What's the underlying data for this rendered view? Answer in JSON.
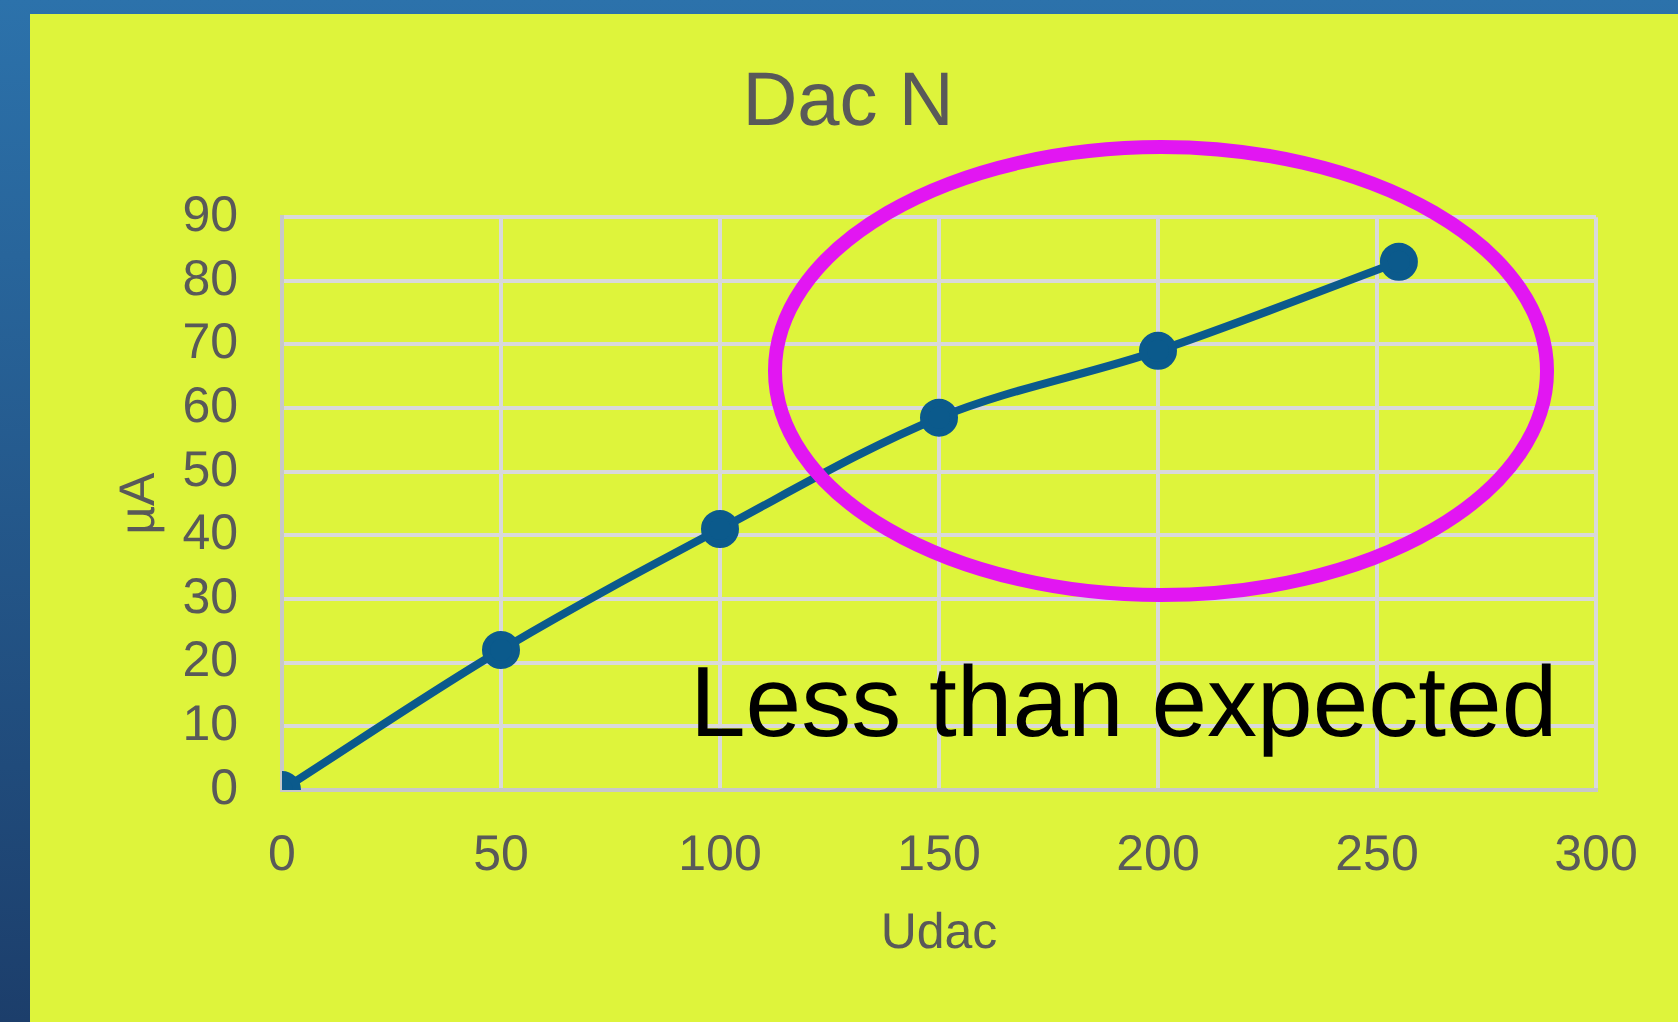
{
  "chart_data": {
    "type": "line",
    "title": "Dac N",
    "xlabel": "Udac",
    "ylabel": "µA",
    "x": [
      0,
      50,
      100,
      150,
      200,
      255
    ],
    "series": [
      {
        "color": "#0b5a8c",
        "values": [
          0,
          22,
          41,
          58.5,
          69,
          83
        ]
      }
    ],
    "xlim": [
      0,
      300
    ],
    "xticks": [
      0,
      50,
      100,
      150,
      200,
      250,
      300
    ],
    "ylim": [
      0,
      90
    ],
    "yticks": [
      0,
      10,
      20,
      30,
      40,
      50,
      60,
      70,
      80,
      90
    ],
    "grid": true,
    "marker": "circle",
    "line_style": "solid",
    "annotations": [
      "Less than expected"
    ]
  }
}
